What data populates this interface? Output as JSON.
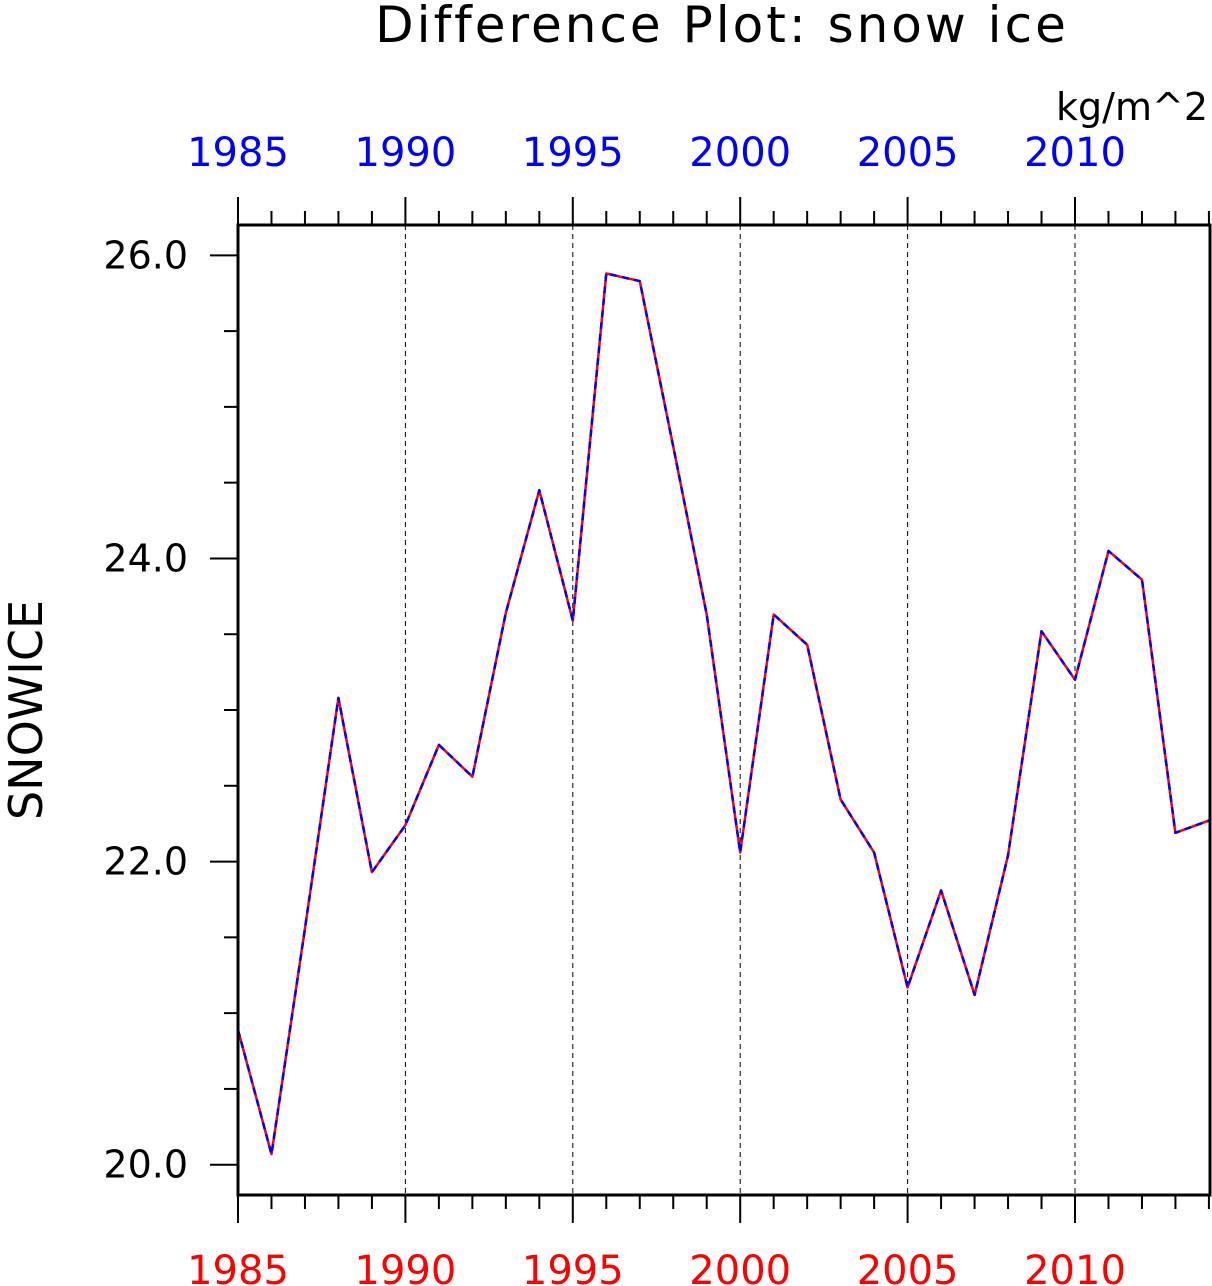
{
  "chart_data": {
    "type": "line",
    "title": "Difference Plot: snow ice",
    "units": "kg/m^2",
    "ylabel": "SNOWICE",
    "xlabel": "",
    "xlim": [
      1985,
      2014
    ],
    "ylim": [
      19.8,
      26.2
    ],
    "grid": "dashed vertical lines at 5-year ticks",
    "x_ticks": [
      "1985",
      "1990",
      "1995",
      "2000",
      "2005",
      "2010"
    ],
    "y_ticks": [
      "20.0",
      "22.0",
      "24.0",
      "26.0"
    ],
    "x": [
      1985,
      1986,
      1987,
      1988,
      1989,
      1990,
      1991,
      1992,
      1993,
      1994,
      1995,
      1996,
      1997,
      1998,
      1999,
      2000,
      2001,
      2002,
      2003,
      2004,
      2005,
      2006,
      2007,
      2008,
      2009,
      2010,
      2011,
      2012,
      2013,
      2014
    ],
    "series": [
      {
        "color": "#ff0000",
        "style": "solid",
        "values": [
          20.89,
          20.07,
          21.56,
          23.08,
          21.93,
          22.24,
          22.77,
          22.56,
          23.64,
          24.45,
          23.59,
          25.88,
          25.83,
          24.74,
          23.63,
          22.06,
          23.63,
          23.43,
          22.41,
          22.06,
          21.17,
          21.81,
          21.12,
          22.04,
          23.52,
          23.2,
          24.05,
          23.86,
          22.19,
          22.27
        ]
      },
      {
        "color": "#0000ff",
        "style": "dashed",
        "values": [
          20.89,
          20.07,
          21.56,
          23.08,
          21.93,
          22.24,
          22.77,
          22.56,
          23.64,
          24.45,
          23.59,
          25.88,
          25.83,
          24.74,
          23.63,
          22.06,
          23.63,
          23.43,
          22.41,
          22.06,
          21.17,
          21.81,
          21.12,
          22.04,
          23.52,
          23.2,
          24.05,
          23.86,
          22.19,
          22.27
        ]
      }
    ],
    "top_axis_color": "#0000ff",
    "bottom_axis_color": "#ff0000"
  }
}
